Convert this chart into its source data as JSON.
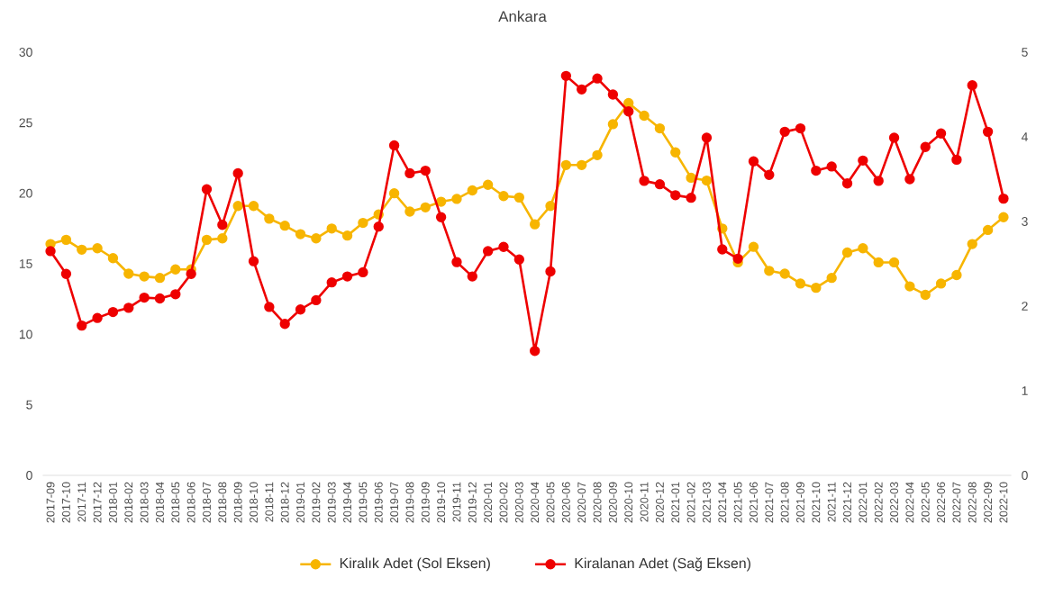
{
  "chart_data": {
    "type": "line",
    "title": "Ankara",
    "categories": [
      "2017-09",
      "2017-10",
      "2017-11",
      "2017-12",
      "2018-01",
      "2018-02",
      "2018-03",
      "2018-04",
      "2018-05",
      "2018-06",
      "2018-07",
      "2018-08",
      "2018-09",
      "2018-10",
      "2018-11",
      "2018-12",
      "2019-01",
      "2019-02",
      "2019-03",
      "2019-04",
      "2019-05",
      "2019-06",
      "2019-07",
      "2019-08",
      "2019-09",
      "2019-10",
      "2019-11",
      "2019-12",
      "2020-01",
      "2020-02",
      "2020-03",
      "2020-04",
      "2020-05",
      "2020-06",
      "2020-07",
      "2020-08",
      "2020-09",
      "2020-10",
      "2020-11",
      "2020-12",
      "2021-01",
      "2021-02",
      "2021-03",
      "2021-04",
      "2021-05",
      "2021-06",
      "2021-07",
      "2021-08",
      "2021-09",
      "2021-10",
      "2021-11",
      "2021-12",
      "2022-01",
      "2022-02",
      "2022-03",
      "2022-04",
      "2022-05",
      "2022-06",
      "2022-07",
      "2022-08",
      "2022-09",
      "2022-10"
    ],
    "series": [
      {
        "name": "Kiralık Adet (Sol Eksen)",
        "color": "#f7b500",
        "values": [
          16.4,
          16.7,
          16.0,
          16.1,
          15.4,
          14.3,
          14.1,
          14.0,
          14.6,
          14.6,
          16.7,
          16.8,
          19.1,
          19.1,
          18.2,
          17.7,
          17.1,
          16.8,
          17.5,
          17.0,
          17.9,
          18.5,
          20.0,
          18.7,
          19.0,
          19.4,
          19.6,
          20.2,
          20.6,
          19.8,
          19.7,
          17.8,
          19.1,
          22.0,
          22.0,
          22.7,
          24.9,
          26.4,
          25.5,
          24.6,
          22.9,
          21.1,
          20.9,
          17.5,
          15.1,
          16.2,
          14.5,
          14.3,
          13.6,
          13.3,
          14.0,
          15.8,
          16.1,
          15.1,
          15.1,
          13.4,
          12.8,
          13.6,
          14.2,
          16.4,
          17.4,
          18.3
        ]
      },
      {
        "name": "Kiralanan Adet (Sağ Eksen)",
        "color": "#ee0000",
        "axis": "y2",
        "values": [
          2.65,
          2.38,
          1.77,
          1.86,
          1.93,
          1.98,
          2.1,
          2.09,
          2.14,
          2.38,
          3.38,
          2.96,
          3.57,
          2.53,
          1.99,
          1.79,
          1.96,
          2.07,
          2.28,
          2.35,
          2.4,
          2.94,
          3.9,
          3.57,
          3.6,
          3.05,
          2.52,
          2.35,
          2.65,
          2.7,
          2.55,
          1.47,
          2.41,
          4.72,
          4.56,
          4.69,
          4.5,
          4.3,
          3.48,
          3.44,
          3.31,
          3.28,
          3.99,
          2.67,
          2.56,
          3.71,
          3.55,
          4.06,
          4.1,
          3.6,
          3.65,
          3.45,
          3.72,
          3.48,
          3.99,
          3.5,
          3.88,
          4.04,
          3.73,
          4.61,
          4.06,
          3.27
        ]
      }
    ],
    "ylim": [
      0,
      30
    ],
    "yticks": [
      0,
      5,
      10,
      15,
      20,
      25,
      30
    ],
    "y2lim": [
      0,
      5
    ],
    "y2ticks": [
      0,
      1,
      2,
      3,
      4,
      5
    ],
    "marker": "circle",
    "line_style": "solid",
    "legend": "bottom"
  }
}
